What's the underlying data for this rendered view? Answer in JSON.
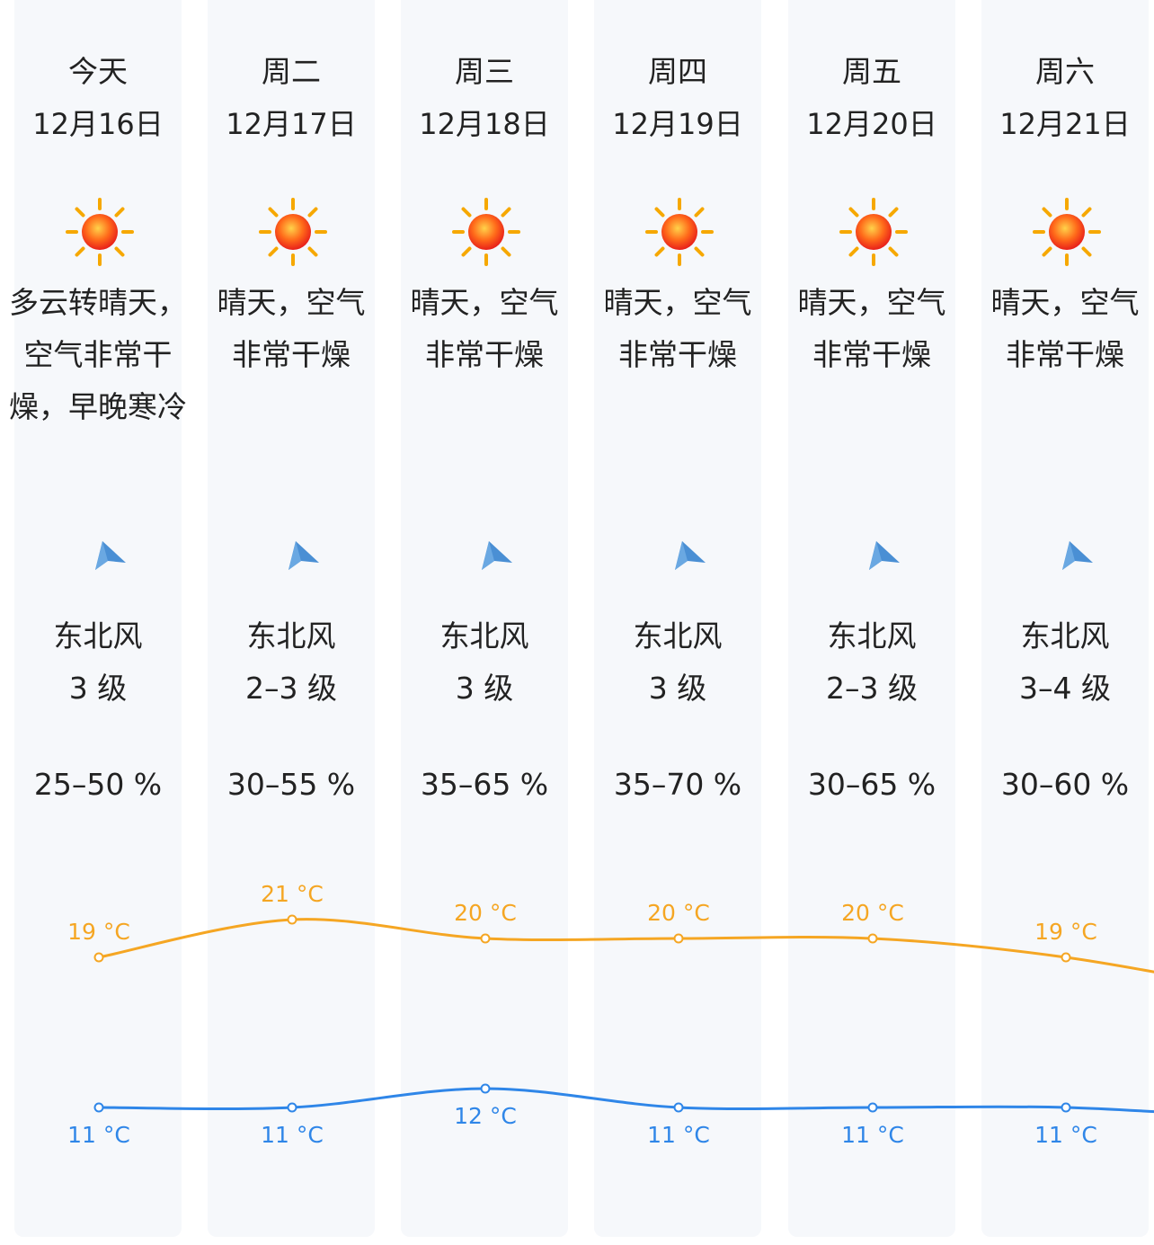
{
  "days": [
    {
      "day": "今天",
      "date": "12月16日",
      "weather": "多云转晴天，空气非常干燥，早晚寒冷",
      "wind_dir": "东北风",
      "wind_level": "3 级",
      "humidity": "25–50 %",
      "weather_icon": "sun-icon",
      "wind_icon": "wind-direction-arrow-icon"
    },
    {
      "day": "周二",
      "date": "12月17日",
      "weather": "晴天，空气非常干燥",
      "wind_dir": "东北风",
      "wind_level": "2–3 级",
      "humidity": "30–55 %",
      "weather_icon": "sun-icon",
      "wind_icon": "wind-direction-arrow-icon"
    },
    {
      "day": "周三",
      "date": "12月18日",
      "weather": "晴天，空气非常干燥",
      "wind_dir": "东北风",
      "wind_level": "3 级",
      "humidity": "35–65 %",
      "weather_icon": "sun-icon",
      "wind_icon": "wind-direction-arrow-icon"
    },
    {
      "day": "周四",
      "date": "12月19日",
      "weather": "晴天，空气非常干燥",
      "wind_dir": "东北风",
      "wind_level": "3 级",
      "humidity": "35–70 %",
      "weather_icon": "sun-icon",
      "wind_icon": "wind-direction-arrow-icon"
    },
    {
      "day": "周五",
      "date": "12月20日",
      "weather": "晴天，空气非常干燥",
      "wind_dir": "东北风",
      "wind_level": "2–3 级",
      "humidity": "30–65 %",
      "weather_icon": "sun-icon",
      "wind_icon": "wind-direction-arrow-icon"
    },
    {
      "day": "周六",
      "date": "12月21日",
      "weather": "晴天，空气非常干燥",
      "wind_dir": "东北风",
      "wind_level": "3–4 级",
      "humidity": "30–60 %",
      "weather_icon": "sun-icon",
      "wind_icon": "wind-direction-arrow-icon"
    }
  ],
  "chart_data": {
    "type": "line",
    "categories": [
      "今天",
      "周二",
      "周三",
      "周四",
      "周五",
      "周六"
    ],
    "unit": "°C",
    "series": [
      {
        "values": [
          19,
          21,
          20,
          20,
          20,
          19
        ],
        "color": "#f5a623"
      },
      {
        "values": [
          11,
          11,
          12,
          11,
          11,
          11
        ],
        "color": "#2f86e8"
      }
    ]
  },
  "colors": {
    "high_line": "#f5a623",
    "low_line": "#2f86e8",
    "column_bg": "#f6f8fb",
    "text": "#222222",
    "wind_arrow": "#4a8fd4"
  }
}
